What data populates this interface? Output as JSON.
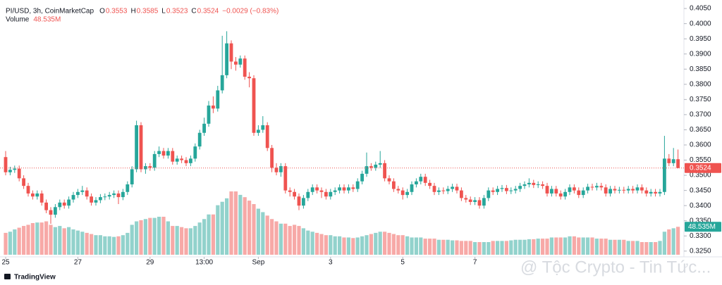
{
  "chart_data": {
    "type": "candlestick",
    "legend": {
      "symbol": "PI/USD, 3h, CoinMarketCap",
      "labels": [
        "O",
        "H",
        "L",
        "C"
      ],
      "change": "−0.0029 (−0.83%)",
      "volume_title": "Volume"
    },
    "volume_label": "48.535M",
    "watermark": "@ Tộc Crypto - Tin Tức...",
    "brand": "TradingView",
    "up_color": "#26a69a",
    "down_color": "#ef5350",
    "ylim": [
      0.3231,
      0.4078
    ],
    "yticks": [
      {
        "value": 0.325,
        "label": "0.3250"
      },
      {
        "value": 0.33,
        "label": "0.3300"
      },
      {
        "value": 0.335,
        "label": "0.3350"
      },
      {
        "value": 0.34,
        "label": "0.3400"
      },
      {
        "value": 0.345,
        "label": "0.3450"
      },
      {
        "value": 0.35,
        "label": "0.3500"
      },
      {
        "value": 0.355,
        "label": "0.3550"
      },
      {
        "value": 0.36,
        "label": "0.3600"
      },
      {
        "value": 0.365,
        "label": "0.3650"
      },
      {
        "value": 0.37,
        "label": "0.3700"
      },
      {
        "value": 0.375,
        "label": "0.3750"
      },
      {
        "value": 0.38,
        "label": "0.3800"
      },
      {
        "value": 0.385,
        "label": "0.3850"
      },
      {
        "value": 0.39,
        "label": "0.3900"
      },
      {
        "value": 0.395,
        "label": "0.3950"
      },
      {
        "value": 0.4,
        "label": "0.4000"
      },
      {
        "value": 0.405,
        "label": "0.4050"
      }
    ],
    "xticks": [
      {
        "value": 0,
        "label": "25"
      },
      {
        "value": 16,
        "label": "27"
      },
      {
        "value": 32,
        "label": "29"
      },
      {
        "value": 44,
        "label": "13:00"
      },
      {
        "value": 56,
        "label": "Sep"
      },
      {
        "value": 72,
        "label": "3"
      },
      {
        "value": 88,
        "label": "5"
      },
      {
        "value": 104,
        "label": "7"
      }
    ],
    "open": [
      0.356,
      0.351,
      0.3518,
      0.3522,
      0.349,
      0.3465,
      0.344,
      0.343,
      0.344,
      0.341,
      0.3385,
      0.337,
      0.3395,
      0.341,
      0.34,
      0.342,
      0.3435,
      0.3445,
      0.345,
      0.343,
      0.341,
      0.3418,
      0.3428,
      0.343,
      0.3435,
      0.344,
      0.3428,
      0.3445,
      0.347,
      0.352,
      0.3665,
      0.352,
      0.353,
      0.3525,
      0.357,
      0.358,
      0.3565,
      0.358,
      0.3545,
      0.3555,
      0.355,
      0.354,
      0.3555,
      0.3595,
      0.364,
      0.367,
      0.373,
      0.372,
      0.378,
      0.383,
      0.3935,
      0.3875,
      0.3865,
      0.3885,
      0.3825,
      0.382,
      0.364,
      0.365,
      0.3665,
      0.359,
      0.3525,
      0.351,
      0.353,
      0.345,
      0.3445,
      0.343,
      0.34,
      0.3425,
      0.3445,
      0.346,
      0.345,
      0.3445,
      0.343,
      0.3445,
      0.345,
      0.346,
      0.345,
      0.346,
      0.3455,
      0.348,
      0.3505,
      0.353,
      0.3525,
      0.3535,
      0.354,
      0.349,
      0.348,
      0.3455,
      0.345,
      0.3435,
      0.3445,
      0.347,
      0.348,
      0.3495,
      0.3475,
      0.3465,
      0.3445,
      0.345,
      0.3448,
      0.3455,
      0.3462,
      0.345,
      0.3425,
      0.342,
      0.3412,
      0.3418,
      0.34,
      0.3425,
      0.345,
      0.3445,
      0.3455,
      0.3458,
      0.3448,
      0.345,
      0.3455,
      0.3465,
      0.347,
      0.3475,
      0.3468,
      0.347,
      0.3465,
      0.344,
      0.3455,
      0.344,
      0.343,
      0.3445,
      0.346,
      0.345,
      0.3435,
      0.345,
      0.3462,
      0.346,
      0.3465,
      0.346,
      0.344,
      0.3455,
      0.345,
      0.3452,
      0.345,
      0.3455,
      0.345,
      0.346,
      0.345,
      0.344,
      0.3445,
      0.344,
      0.3445,
      0.3555,
      0.354,
      0.3553
    ],
    "high": [
      0.358,
      0.3528,
      0.3532,
      0.3532,
      0.35,
      0.3475,
      0.345,
      0.345,
      0.345,
      0.342,
      0.3395,
      0.3405,
      0.342,
      0.342,
      0.343,
      0.3445,
      0.3455,
      0.3465,
      0.346,
      0.344,
      0.3428,
      0.3438,
      0.344,
      0.3445,
      0.345,
      0.345,
      0.3455,
      0.348,
      0.353,
      0.368,
      0.3675,
      0.354,
      0.354,
      0.358,
      0.3595,
      0.359,
      0.359,
      0.359,
      0.3565,
      0.3565,
      0.356,
      0.3565,
      0.3605,
      0.365,
      0.369,
      0.3745,
      0.376,
      0.3795,
      0.396,
      0.3975,
      0.3945,
      0.389,
      0.3895,
      0.3895,
      0.384,
      0.383,
      0.3665,
      0.3695,
      0.3675,
      0.36,
      0.354,
      0.354,
      0.354,
      0.346,
      0.3455,
      0.344,
      0.3435,
      0.3455,
      0.347,
      0.347,
      0.346,
      0.3455,
      0.3455,
      0.346,
      0.347,
      0.347,
      0.347,
      0.347,
      0.349,
      0.3515,
      0.3575,
      0.354,
      0.3545,
      0.358,
      0.355,
      0.35,
      0.349,
      0.3465,
      0.346,
      0.3455,
      0.348,
      0.349,
      0.3505,
      0.3505,
      0.3485,
      0.3475,
      0.346,
      0.346,
      0.3465,
      0.3472,
      0.3472,
      0.346,
      0.3435,
      0.343,
      0.3428,
      0.3428,
      0.3435,
      0.346,
      0.346,
      0.3465,
      0.3468,
      0.3468,
      0.346,
      0.3465,
      0.3475,
      0.348,
      0.349,
      0.3485,
      0.348,
      0.348,
      0.3475,
      0.3465,
      0.3465,
      0.345,
      0.3455,
      0.347,
      0.347,
      0.346,
      0.346,
      0.3472,
      0.3472,
      0.3475,
      0.3475,
      0.347,
      0.3465,
      0.3465,
      0.3462,
      0.3462,
      0.3465,
      0.3465,
      0.347,
      0.347,
      0.346,
      0.3455,
      0.3455,
      0.3455,
      0.363,
      0.357,
      0.359,
      0.3585
    ],
    "low": [
      0.35,
      0.35,
      0.3508,
      0.348,
      0.3455,
      0.343,
      0.342,
      0.342,
      0.34,
      0.3375,
      0.334,
      0.336,
      0.3385,
      0.339,
      0.339,
      0.341,
      0.3425,
      0.3435,
      0.342,
      0.34,
      0.34,
      0.3408,
      0.3418,
      0.342,
      0.3425,
      0.3405,
      0.3418,
      0.3435,
      0.346,
      0.351,
      0.351,
      0.3505,
      0.3515,
      0.3515,
      0.356,
      0.3555,
      0.3555,
      0.3535,
      0.3535,
      0.354,
      0.353,
      0.353,
      0.3545,
      0.3585,
      0.363,
      0.366,
      0.3705,
      0.371,
      0.377,
      0.382,
      0.385,
      0.3845,
      0.3855,
      0.3815,
      0.379,
      0.363,
      0.363,
      0.364,
      0.358,
      0.351,
      0.35,
      0.3495,
      0.344,
      0.343,
      0.342,
      0.3385,
      0.339,
      0.3415,
      0.3435,
      0.344,
      0.3425,
      0.342,
      0.342,
      0.3435,
      0.344,
      0.344,
      0.344,
      0.3445,
      0.3445,
      0.347,
      0.3495,
      0.3515,
      0.3515,
      0.3525,
      0.348,
      0.347,
      0.3445,
      0.344,
      0.342,
      0.3425,
      0.3435,
      0.346,
      0.347,
      0.3465,
      0.3455,
      0.3435,
      0.3435,
      0.3438,
      0.3438,
      0.3445,
      0.344,
      0.3415,
      0.341,
      0.3402,
      0.3402,
      0.339,
      0.339,
      0.3415,
      0.3435,
      0.3435,
      0.3445,
      0.3438,
      0.3438,
      0.344,
      0.3445,
      0.3455,
      0.346,
      0.3458,
      0.3458,
      0.3455,
      0.343,
      0.343,
      0.343,
      0.342,
      0.342,
      0.3435,
      0.344,
      0.3425,
      0.3425,
      0.344,
      0.345,
      0.345,
      0.345,
      0.343,
      0.343,
      0.344,
      0.344,
      0.344,
      0.344,
      0.344,
      0.344,
      0.344,
      0.343,
      0.343,
      0.343,
      0.343,
      0.3435,
      0.353,
      0.353,
      0.3523
    ],
    "close": [
      0.351,
      0.3518,
      0.3522,
      0.349,
      0.3465,
      0.344,
      0.343,
      0.344,
      0.341,
      0.3385,
      0.337,
      0.3395,
      0.341,
      0.34,
      0.342,
      0.3435,
      0.3445,
      0.345,
      0.343,
      0.341,
      0.3418,
      0.3428,
      0.343,
      0.3435,
      0.344,
      0.3428,
      0.3445,
      0.347,
      0.352,
      0.3665,
      0.352,
      0.353,
      0.3525,
      0.357,
      0.358,
      0.3565,
      0.358,
      0.3545,
      0.3555,
      0.355,
      0.354,
      0.3555,
      0.3595,
      0.364,
      0.367,
      0.373,
      0.372,
      0.378,
      0.383,
      0.3935,
      0.3875,
      0.3865,
      0.3885,
      0.3825,
      0.382,
      0.364,
      0.365,
      0.3665,
      0.359,
      0.3525,
      0.351,
      0.353,
      0.345,
      0.3445,
      0.343,
      0.34,
      0.3425,
      0.3445,
      0.346,
      0.345,
      0.3445,
      0.343,
      0.3445,
      0.345,
      0.346,
      0.345,
      0.346,
      0.3455,
      0.348,
      0.3505,
      0.353,
      0.3525,
      0.3535,
      0.354,
      0.349,
      0.348,
      0.3455,
      0.345,
      0.3435,
      0.3445,
      0.347,
      0.348,
      0.3495,
      0.3475,
      0.3465,
      0.3445,
      0.345,
      0.3448,
      0.3455,
      0.3462,
      0.345,
      0.3425,
      0.342,
      0.3412,
      0.3418,
      0.34,
      0.3425,
      0.345,
      0.3445,
      0.3455,
      0.3458,
      0.3448,
      0.345,
      0.3455,
      0.3465,
      0.347,
      0.3475,
      0.3468,
      0.347,
      0.3465,
      0.344,
      0.3455,
      0.344,
      0.343,
      0.3445,
      0.346,
      0.345,
      0.3435,
      0.345,
      0.3462,
      0.346,
      0.3465,
      0.346,
      0.344,
      0.3455,
      0.345,
      0.3452,
      0.345,
      0.3455,
      0.345,
      0.346,
      0.345,
      0.344,
      0.3445,
      0.344,
      0.3445,
      0.3555,
      0.354,
      0.3553,
      0.3524
    ],
    "volume": [
      38,
      40,
      44,
      47,
      50,
      52,
      55,
      56,
      56,
      58,
      52,
      48,
      50,
      46,
      48,
      44,
      42,
      40,
      38,
      36,
      34,
      34,
      32,
      32,
      31,
      32,
      34,
      38,
      52,
      58,
      60,
      62,
      64,
      64,
      66,
      66,
      58,
      50,
      50,
      48,
      46,
      46,
      50,
      56,
      62,
      70,
      70,
      86,
      92,
      98,
      110,
      110,
      104,
      100,
      94,
      88,
      80,
      74,
      68,
      62,
      58,
      54,
      54,
      50,
      52,
      50,
      46,
      42,
      40,
      38,
      36,
      34,
      34,
      32,
      32,
      30,
      30,
      29,
      30,
      32,
      34,
      36,
      38,
      40,
      40,
      38,
      36,
      34,
      34,
      32,
      30,
      30,
      30,
      28,
      28,
      28,
      26,
      26,
      26,
      25,
      25,
      24,
      24,
      24,
      22,
      22,
      22,
      22,
      24,
      24,
      24,
      24,
      25,
      26,
      26,
      26,
      27,
      27,
      28,
      28,
      28,
      30,
      30,
      30,
      30,
      32,
      32,
      30,
      30,
      30,
      30,
      28,
      28,
      28,
      26,
      26,
      26,
      26,
      24,
      24,
      24,
      22,
      22,
      22,
      22,
      24,
      40,
      44,
      46,
      48.535
    ]
  }
}
